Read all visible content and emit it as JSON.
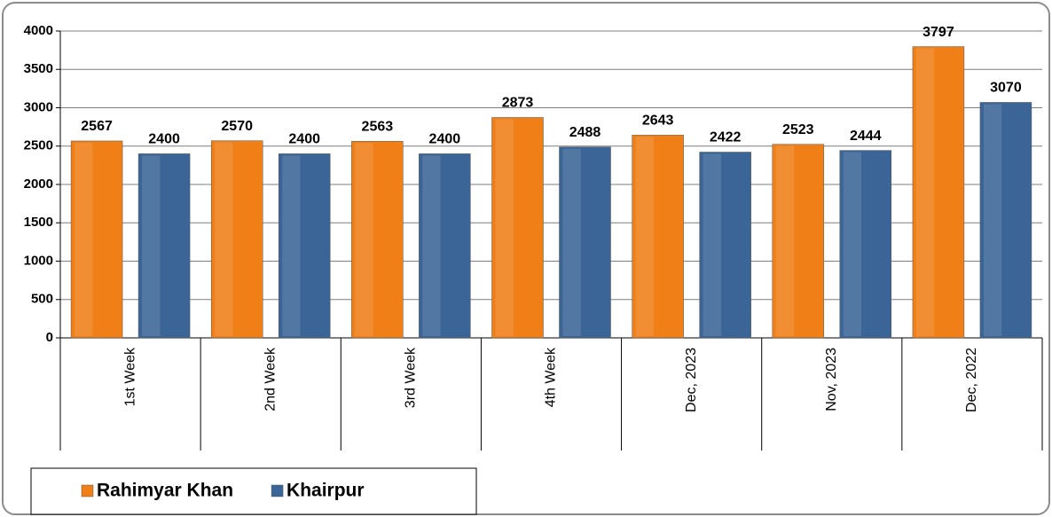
{
  "chart_data": {
    "type": "bar",
    "categories": [
      "1st Week",
      "2nd Week",
      "3rd Week",
      "4th Week",
      "Dec, 2023",
      "Nov, 2023",
      "Dec, 2022"
    ],
    "series": [
      {
        "name": "Rahimyar Khan",
        "color": "#f07f17",
        "values": [
          2567,
          2570,
          2563,
          2873,
          2643,
          2523,
          3797
        ]
      },
      {
        "name": "Khairpur",
        "color": "#3b6597",
        "values": [
          2400,
          2400,
          2400,
          2488,
          2422,
          2444,
          3070
        ]
      }
    ],
    "ylim": [
      0,
      4000
    ],
    "yticks": [
      0,
      500,
      1000,
      1500,
      2000,
      2500,
      3000,
      3500,
      4000
    ],
    "grid": true,
    "legend": "bottom-left"
  }
}
